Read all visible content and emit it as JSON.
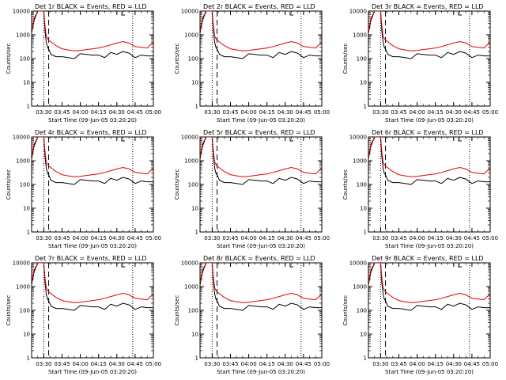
{
  "chart_data": {
    "type": "line",
    "layout": "3x3 grid of panels",
    "y_axis": {
      "label": "Counts/sec",
      "scale": "log",
      "ylim": [
        1,
        10000
      ],
      "tick_labels": [
        "1",
        "10",
        "100",
        "1000",
        "10000"
      ]
    },
    "x_axis": {
      "label": "Start Time (09-Jun-05 03:20:20)",
      "xlim_minutes_after_0320": [
        0,
        100
      ],
      "tick_labels": [
        "03:30",
        "03:45",
        "04:00",
        "04:15",
        "04:30",
        "04:45",
        "05:00"
      ],
      "tick_minutes_after_0320": [
        10,
        25,
        40,
        55,
        70,
        85,
        100
      ]
    },
    "legend": "BLACK = Events, RED = LLD",
    "series_names": [
      "Events",
      "LLD"
    ],
    "series_colors": {
      "Events": "#000000",
      "LLD": "#e00000"
    },
    "x_minutes": [
      0,
      2,
      5,
      8,
      10,
      11,
      12,
      13,
      14,
      16,
      20,
      25,
      30,
      35,
      40,
      45,
      50,
      55,
      60,
      65,
      70,
      75,
      80,
      85,
      90,
      95,
      100
    ],
    "panels": [
      {
        "title": "Det 1r BLACK = Events, RED = LLD",
        "dotted_lines_min": [
          10,
          83,
          100
        ],
        "dashed_line_min": 14,
        "series": [
          {
            "name": "Events",
            "values": [
              1200,
              4000,
              10000,
              10000,
              10000,
              1500,
              500,
              300,
              250,
              150,
              120,
              120,
              110,
              100,
              160,
              150,
              140,
              140,
              110,
              180,
              150,
              200,
              170,
              110,
              140,
              130,
              130
            ]
          },
          {
            "name": "LLD",
            "values": [
              1500,
              5000,
              10000,
              10000,
              10000,
              2500,
              900,
              700,
              600,
              500,
              350,
              260,
              230,
              210,
              220,
              240,
              260,
              280,
              320,
              380,
              450,
              520,
              450,
              320,
              300,
              280,
              500
            ]
          }
        ]
      },
      {
        "title": "Det 2r BLACK = Events, RED = LLD",
        "dotted_lines_min": [
          10,
          83,
          100
        ],
        "dashed_line_min": 14,
        "series": [
          {
            "name": "Events",
            "values": [
              1200,
              4000,
              10000,
              10000,
              10000,
              1500,
              500,
              300,
              250,
              150,
              120,
              120,
              110,
              100,
              160,
              150,
              140,
              140,
              110,
              180,
              150,
              200,
              170,
              110,
              140,
              130,
              130
            ]
          },
          {
            "name": "LLD",
            "values": [
              1500,
              5000,
              10000,
              10000,
              10000,
              2500,
              900,
              700,
              600,
              500,
              350,
              260,
              230,
              210,
              220,
              240,
              260,
              280,
              320,
              380,
              450,
              520,
              450,
              320,
              300,
              280,
              500
            ]
          }
        ]
      },
      {
        "title": "Det 3r BLACK = Events, RED = LLD",
        "dotted_lines_min": [
          10,
          83,
          100
        ],
        "dashed_line_min": 14,
        "series": [
          {
            "name": "Events",
            "values": [
              1200,
              4000,
              10000,
              10000,
              10000,
              1500,
              500,
              300,
              250,
              150,
              120,
              120,
              110,
              100,
              160,
              150,
              140,
              140,
              110,
              180,
              150,
              200,
              170,
              110,
              140,
              130,
              130
            ]
          },
          {
            "name": "LLD",
            "values": [
              1500,
              5000,
              10000,
              10000,
              10000,
              2500,
              900,
              700,
              600,
              500,
              350,
              260,
              230,
              210,
              220,
              240,
              260,
              280,
              320,
              380,
              450,
              520,
              450,
              320,
              300,
              280,
              500
            ]
          }
        ]
      },
      {
        "title": "Det 4r BLACK = Events, RED = LLD",
        "dotted_lines_min": [
          10,
          83,
          100
        ],
        "dashed_line_min": 14,
        "series": [
          {
            "name": "Events",
            "values": [
              1200,
              4000,
              10000,
              10000,
              10000,
              1500,
              500,
              300,
              250,
              150,
              120,
              120,
              110,
              100,
              160,
              150,
              140,
              140,
              110,
              180,
              150,
              200,
              170,
              110,
              140,
              130,
              130
            ]
          },
          {
            "name": "LLD",
            "values": [
              1500,
              5000,
              10000,
              10000,
              10000,
              2500,
              900,
              700,
              600,
              500,
              350,
              260,
              230,
              210,
              220,
              240,
              260,
              280,
              320,
              380,
              450,
              520,
              450,
              320,
              300,
              280,
              500
            ]
          }
        ]
      },
      {
        "title": "Det 5r BLACK = Events, RED = LLD",
        "dotted_lines_min": [
          10,
          83,
          100
        ],
        "dashed_line_min": 14,
        "series": [
          {
            "name": "Events",
            "values": [
              1200,
              4000,
              10000,
              10000,
              10000,
              1500,
              500,
              300,
              250,
              150,
              120,
              120,
              110,
              100,
              160,
              150,
              140,
              140,
              110,
              180,
              150,
              200,
              170,
              110,
              140,
              130,
              130
            ]
          },
          {
            "name": "LLD",
            "values": [
              1500,
              5000,
              10000,
              10000,
              10000,
              2500,
              900,
              700,
              600,
              500,
              350,
              260,
              230,
              210,
              220,
              240,
              260,
              280,
              320,
              380,
              450,
              520,
              450,
              320,
              300,
              280,
              500
            ]
          }
        ]
      },
      {
        "title": "Det 6r BLACK = Events, RED = LLD",
        "dotted_lines_min": [
          10,
          83,
          100
        ],
        "dashed_line_min": 14,
        "series": [
          {
            "name": "Events",
            "values": [
              1200,
              4000,
              10000,
              10000,
              10000,
              1500,
              500,
              300,
              250,
              150,
              120,
              120,
              110,
              100,
              160,
              150,
              140,
              140,
              110,
              180,
              150,
              200,
              170,
              110,
              140,
              130,
              130
            ]
          },
          {
            "name": "LLD",
            "values": [
              1500,
              5000,
              10000,
              10000,
              10000,
              2500,
              900,
              700,
              600,
              500,
              350,
              260,
              230,
              210,
              220,
              240,
              260,
              280,
              320,
              380,
              450,
              520,
              450,
              320,
              300,
              280,
              500
            ]
          }
        ]
      },
      {
        "title": "Det 7r BLACK = Events, RED = LLD",
        "dotted_lines_min": [
          10,
          83,
          100
        ],
        "dashed_line_min": 14,
        "series": [
          {
            "name": "Events",
            "values": [
              1200,
              4000,
              10000,
              10000,
              10000,
              1500,
              500,
              300,
              250,
              150,
              120,
              120,
              110,
              100,
              160,
              150,
              140,
              140,
              110,
              180,
              150,
              200,
              170,
              110,
              140,
              130,
              130
            ]
          },
          {
            "name": "LLD",
            "values": [
              1500,
              5000,
              10000,
              10000,
              10000,
              2500,
              900,
              700,
              600,
              500,
              350,
              260,
              230,
              210,
              220,
              240,
              260,
              280,
              320,
              380,
              450,
              520,
              450,
              320,
              300,
              280,
              500
            ]
          }
        ]
      },
      {
        "title": "Det 8r BLACK = Events, RED = LLD",
        "dotted_lines_min": [
          10,
          83,
          100
        ],
        "dashed_line_min": 14,
        "series": [
          {
            "name": "Events",
            "values": [
              1200,
              4000,
              10000,
              10000,
              10000,
              1500,
              500,
              300,
              250,
              150,
              120,
              120,
              110,
              100,
              160,
              150,
              140,
              140,
              110,
              180,
              150,
              200,
              170,
              110,
              140,
              130,
              130
            ]
          },
          {
            "name": "LLD",
            "values": [
              1500,
              5000,
              10000,
              10000,
              10000,
              2500,
              900,
              700,
              600,
              500,
              350,
              260,
              230,
              210,
              220,
              240,
              260,
              280,
              320,
              380,
              450,
              520,
              450,
              320,
              300,
              280,
              500
            ]
          }
        ]
      },
      {
        "title": "Det 9r BLACK = Events, RED = LLD",
        "dotted_lines_min": [
          10,
          83,
          100
        ],
        "dashed_line_min": 14,
        "series": [
          {
            "name": "Events",
            "values": [
              1200,
              4000,
              10000,
              10000,
              10000,
              1500,
              500,
              300,
              250,
              150,
              120,
              120,
              110,
              100,
              160,
              150,
              140,
              140,
              110,
              180,
              150,
              200,
              170,
              110,
              140,
              130,
              130
            ]
          },
          {
            "name": "LLD",
            "values": [
              1500,
              5000,
              10000,
              10000,
              10000,
              2500,
              900,
              700,
              600,
              500,
              350,
              260,
              230,
              210,
              220,
              240,
              260,
              280,
              320,
              380,
              450,
              520,
              450,
              320,
              300,
              280,
              500
            ]
          }
        ]
      }
    ]
  }
}
